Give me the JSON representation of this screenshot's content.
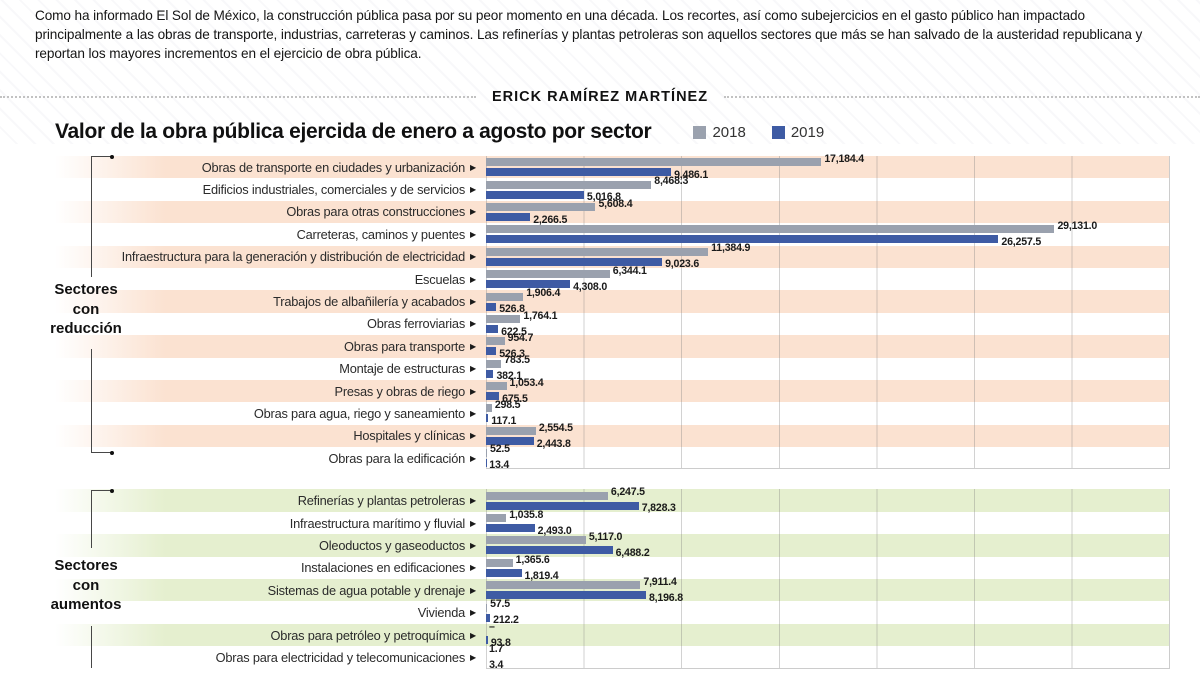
{
  "intro": "Como ha informado El Sol de México, la construcción pública pasa por su peor momento en una década. Los recortes, así como subejercicios en el gasto público han impactado principalmente a las obras de transporte, industrias, carreteras y caminos. Las refinerías y plantas petroleras son aquellos sectores que más se han salvado de la austeridad republicana y reportan los mayores incrementos en el ejercicio de obra pública.",
  "byline": "ERICK RAMÍREZ MARTÍNEZ",
  "icons": {
    "row_arrow": "▶"
  },
  "chart_data": {
    "type": "bar",
    "orientation": "horizontal",
    "title": "Valor de la obra pública ejercida de enero a agosto por sector",
    "legend": [
      {
        "label": "2018",
        "color": "#9aa1ae"
      },
      {
        "label": "2019",
        "color": "#3e5ba4"
      }
    ],
    "legend_position": "right-of-title",
    "grid": "vertical",
    "axis_max": 35000,
    "gridline_step": 5000,
    "colors": {
      "bar_2018": "#9aa1ae",
      "bar_2019": "#3e5ba4",
      "band_reduccion": "#fbe2d1",
      "band_aumentos": "#e5efcf"
    },
    "groups": [
      {
        "name": "Sectores con reducción",
        "name_lines": [
          "Sectores",
          "con",
          "reducción"
        ],
        "band_color": "#fbe2d1",
        "rows": [
          {
            "label": "Obras de transporte en ciudades y urbanización",
            "v2018": 17184.4,
            "v2019": 9486.1,
            "d2018": "17,184.4",
            "d2019": "9,486.1"
          },
          {
            "label": "Edificios industriales, comerciales y de servicios",
            "v2018": 8468.3,
            "v2019": 5016.8,
            "d2018": "8,468.3",
            "d2019": "5,016.8"
          },
          {
            "label": "Obras para otras construcciones",
            "v2018": 5608.4,
            "v2019": 2266.5,
            "d2018": "5,608.4",
            "d2019": "2,266.5"
          },
          {
            "label": "Carreteras, caminos y puentes",
            "v2018": 29131.0,
            "v2019": 26257.5,
            "d2018": "29,131.0",
            "d2019": "26,257.5"
          },
          {
            "label": "Infraestructura para la generación y distribución de electricidad",
            "v2018": 11384.9,
            "v2019": 9023.6,
            "d2018": "11,384.9",
            "d2019": "9,023.6"
          },
          {
            "label": "Escuelas",
            "v2018": 6344.1,
            "v2019": 4308.0,
            "d2018": "6,344.1",
            "d2019": "4,308.0"
          },
          {
            "label": "Trabajos de albañilería y acabados",
            "v2018": 1906.4,
            "v2019": 526.8,
            "d2018": "1,906.4",
            "d2019": "526.8"
          },
          {
            "label": "Obras ferroviarias",
            "v2018": 1764.1,
            "v2019": 622.5,
            "d2018": "1,764.1",
            "d2019": "622.5"
          },
          {
            "label": "Obras para transporte",
            "v2018": 954.7,
            "v2019": 526.3,
            "d2018": "954.7",
            "d2019": "526.3"
          },
          {
            "label": "Montaje de estructuras",
            "v2018": 783.5,
            "v2019": 382.1,
            "d2018": "783.5",
            "d2019": "382.1"
          },
          {
            "label": "Presas y obras de riego",
            "v2018": 1053.4,
            "v2019": 675.5,
            "d2018": "1,053.4",
            "d2019": "675.5"
          },
          {
            "label": "Obras para agua, riego y saneamiento",
            "v2018": 298.5,
            "v2019": 117.1,
            "d2018": "298.5",
            "d2019": "117.1"
          },
          {
            "label": "Hospitales y clínicas",
            "v2018": 2554.5,
            "v2019": 2443.8,
            "d2018": "2,554.5",
            "d2019": "2,443.8"
          },
          {
            "label": "Obras para la edificación",
            "v2018": 52.5,
            "v2019": 13.4,
            "d2018": "52.5",
            "d2019": "13.4"
          }
        ]
      },
      {
        "name": "Sectores con aumentos",
        "name_lines": [
          "Sectores",
          "con",
          "aumentos"
        ],
        "band_color": "#e5efcf",
        "rows": [
          {
            "label": "Refinerías y plantas petroleras",
            "v2018": 6247.5,
            "v2019": 7828.3,
            "d2018": "6,247.5",
            "d2019": "7,828.3"
          },
          {
            "label": "Infraestructura marítimo y fluvial",
            "v2018": 1035.8,
            "v2019": 2493.0,
            "d2018": "1,035.8",
            "d2019": "2,493.0"
          },
          {
            "label": "Oleoductos y gaseoductos",
            "v2018": 5117.0,
            "v2019": 6488.2,
            "d2018": "5,117.0",
            "d2019": "6,488.2"
          },
          {
            "label": "Instalaciones en edificaciones",
            "v2018": 1365.6,
            "v2019": 1819.4,
            "d2018": "1,365.6",
            "d2019": "1,819.4"
          },
          {
            "label": "Sistemas de agua potable y drenaje",
            "v2018": 7911.4,
            "v2019": 8196.8,
            "d2018": "7,911.4",
            "d2019": "8,196.8"
          },
          {
            "label": "Vivienda",
            "v2018": 57.5,
            "v2019": 212.2,
            "d2018": "57.5",
            "d2019": "212.2"
          },
          {
            "label": "Obras para petróleo y petroquímica",
            "v2018": 0,
            "v2019": 93.8,
            "d2018": "–",
            "d2019": "93.8"
          },
          {
            "label": "Obras para electricidad y telecomunicaciones",
            "v2018": 1.7,
            "v2019": 3.4,
            "d2018": "1.7",
            "d2019": "3.4"
          }
        ]
      }
    ]
  }
}
